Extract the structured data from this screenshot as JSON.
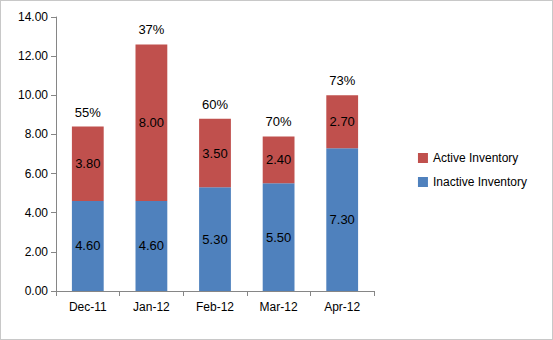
{
  "chart_data": {
    "type": "bar",
    "stacked": true,
    "categories": [
      "Dec-11",
      "Jan-12",
      "Feb-12",
      "Mar-12",
      "Apr-12"
    ],
    "series": [
      {
        "name": "Inactive Inventory",
        "color": "#4f81bd",
        "values": [
          4.6,
          4.6,
          5.3,
          5.5,
          7.3
        ],
        "value_labels": [
          "4.60",
          "4.60",
          "5.30",
          "5.50",
          "7.30"
        ]
      },
      {
        "name": "Active Inventory",
        "color": "#c0504d",
        "values": [
          3.8,
          8.0,
          3.5,
          2.4,
          2.7
        ],
        "value_labels": [
          "3.80",
          "8.00",
          "3.50",
          "2.40",
          "2.70"
        ]
      }
    ],
    "annotations": [
      {
        "category": "Dec-11",
        "value": 55,
        "label": "55%"
      },
      {
        "category": "Jan-12",
        "value": 37,
        "label": "37%"
      },
      {
        "category": "Feb-12",
        "value": 60,
        "label": "60%"
      },
      {
        "category": "Mar-12",
        "value": 70,
        "label": "70%"
      },
      {
        "category": "Apr-12",
        "value": 73,
        "label": "73%"
      }
    ],
    "ylim": [
      0,
      14
    ],
    "yticks": [
      {
        "value": 0,
        "label": "0.00"
      },
      {
        "value": 2,
        "label": "2.00"
      },
      {
        "value": 4,
        "label": "4.00"
      },
      {
        "value": 6,
        "label": "6.00"
      },
      {
        "value": 8,
        "label": "8.00"
      },
      {
        "value": 10,
        "label": "10.00"
      },
      {
        "value": 12,
        "label": "12.00"
      },
      {
        "value": 14,
        "label": "14.00"
      }
    ],
    "grid": false,
    "legend": "right",
    "data_labels": true
  }
}
